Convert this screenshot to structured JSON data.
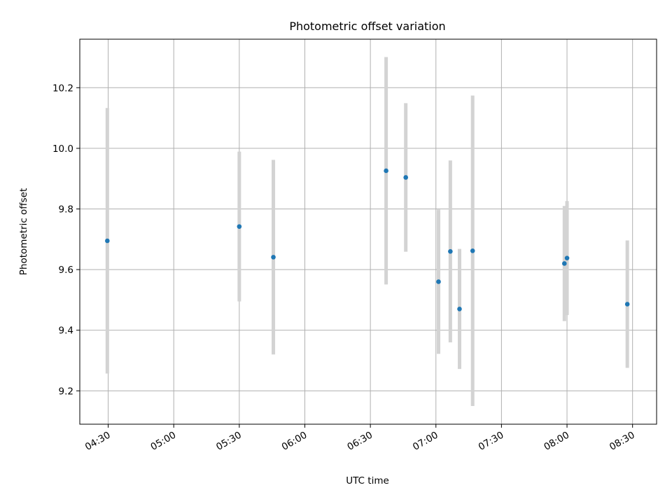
{
  "chart_data": {
    "type": "scatter",
    "title": "Photometric offset variation",
    "xlabel": "UTC time",
    "ylabel": "Photometric offset",
    "x_unit": "UTC HH:MM",
    "xlim": [
      "04:17",
      "08:41"
    ],
    "ylim": [
      9.09,
      10.36
    ],
    "grid": true,
    "x_ticks": [
      "04:30",
      "05:00",
      "05:30",
      "06:00",
      "06:30",
      "07:00",
      "07:30",
      "08:00",
      "08:30"
    ],
    "y_ticks": [
      "9.2",
      "9.4",
      "9.6",
      "9.8",
      "10.0",
      "10.2"
    ],
    "point_color": "#1f77b4",
    "errorbar_color": "#d3d3d3",
    "points": [
      {
        "time": "04:29:36",
        "y": 9.695,
        "err": 0.438
      },
      {
        "time": "05:30:00",
        "y": 9.742,
        "err": 0.247
      },
      {
        "time": "05:45:36",
        "y": 9.641,
        "err": 0.321
      },
      {
        "time": "06:37:12",
        "y": 9.926,
        "err": 0.375
      },
      {
        "time": "06:46:12",
        "y": 9.904,
        "err": 0.245
      },
      {
        "time": "07:01:12",
        "y": 9.56,
        "err": 0.238
      },
      {
        "time": "07:06:36",
        "y": 9.66,
        "err": 0.3
      },
      {
        "time": "07:10:48",
        "y": 9.47,
        "err": 0.198
      },
      {
        "time": "07:16:48",
        "y": 9.662,
        "err": 0.512
      },
      {
        "time": "07:58:48",
        "y": 9.62,
        "err": 0.19
      },
      {
        "time": "08:00:00",
        "y": 9.638,
        "err": 0.188
      },
      {
        "time": "08:27:36",
        "y": 9.486,
        "err": 0.21
      }
    ]
  }
}
